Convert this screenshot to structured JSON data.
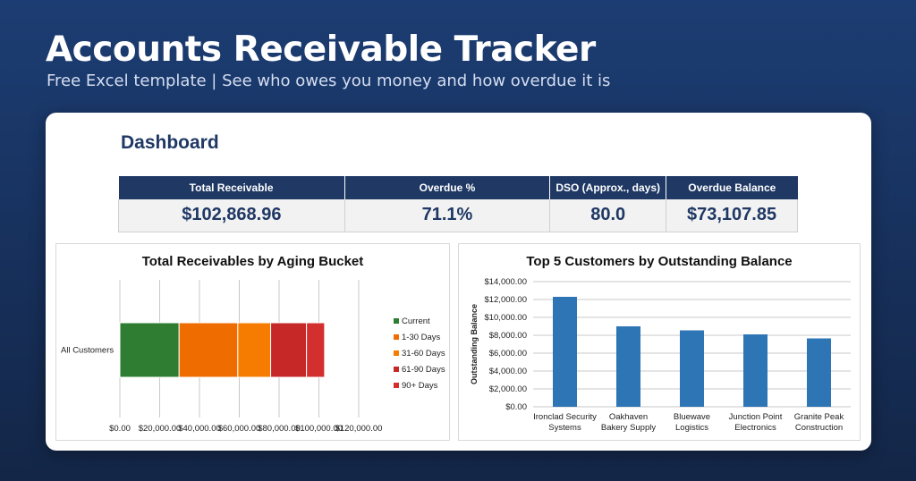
{
  "header": {
    "title": "Accounts Receivable Tracker",
    "subtitle": "Free Excel template  |  See who owes you money and how overdue it is"
  },
  "dashboard": {
    "title": "Dashboard",
    "kpis": [
      {
        "label": "Total Receivable",
        "value": "$102,868.96"
      },
      {
        "label": "Overdue %",
        "value": "71.1%"
      },
      {
        "label": "DSO (Approx., days)",
        "value": "80.0"
      },
      {
        "label": "Overdue Balance",
        "value": "$73,107.85"
      }
    ]
  },
  "chart_data": [
    {
      "type": "bar",
      "orientation": "horizontal-stacked",
      "title": "Total Receivables by Aging Bucket",
      "categories": [
        "All Customers"
      ],
      "series": [
        {
          "name": "Current",
          "values": [
            29761.11
          ],
          "color": "#2e7d32"
        },
        {
          "name": "1-30 Days",
          "values": [
            29500
          ],
          "color": "#ef6c00"
        },
        {
          "name": "31-60 Days",
          "values": [
            16500
          ],
          "color": "#f57c00"
        },
        {
          "name": "61-90 Days",
          "values": [
            18000
          ],
          "color": "#c62828"
        },
        {
          "name": "90+ Days",
          "values": [
            9107.85
          ],
          "color": "#d32f2f"
        }
      ],
      "xlim": [
        0,
        120000
      ],
      "xticks": [
        0,
        20000,
        40000,
        60000,
        80000,
        100000,
        120000
      ],
      "xtick_labels": [
        "$0.00",
        "$20,000.00",
        "$40,000.00",
        "$60,000.00",
        "$80,000.00",
        "$100,000.00",
        "$120,000.00"
      ],
      "legend": "right",
      "grid": true
    },
    {
      "type": "bar",
      "title": "Top 5 Customers by Outstanding Balance",
      "ylabel": "Outstanding Balance",
      "categories": [
        [
          "Ironclad Security",
          "Systems"
        ],
        [
          "Oakhaven",
          "Bakery Supply"
        ],
        [
          "Bluewave",
          "Logistics"
        ],
        [
          "Junction Point",
          "Electronics"
        ],
        [
          "Granite Peak",
          "Construction"
        ]
      ],
      "values": [
        12300,
        9000,
        8550,
        8100,
        7650
      ],
      "color": "#2e75b6",
      "ylim": [
        0,
        14000
      ],
      "yticks": [
        0,
        2000,
        4000,
        6000,
        8000,
        10000,
        12000,
        14000
      ],
      "ytick_labels": [
        "$0.00",
        "$2,000.00",
        "$4,000.00",
        "$6,000.00",
        "$8,000.00",
        "$10,000.00",
        "$12,000.00",
        "$14,000.00"
      ],
      "grid": true
    }
  ]
}
